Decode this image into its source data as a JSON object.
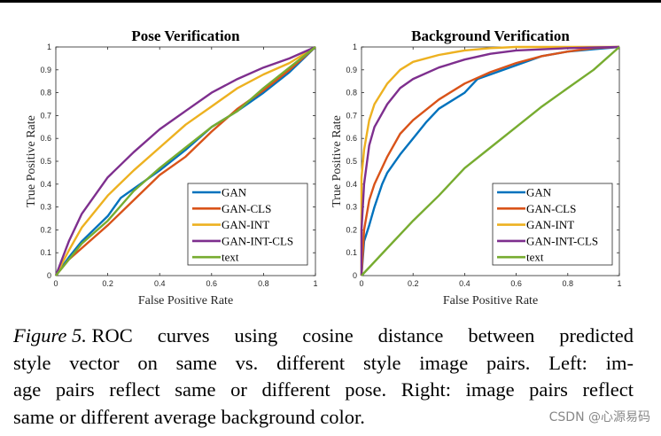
{
  "chart_data": [
    {
      "type": "line",
      "title": "Pose Verification",
      "xlabel": "False Positive Rate",
      "ylabel": "True Positive Rate",
      "xlim": [
        0,
        1
      ],
      "ylim": [
        0,
        1
      ],
      "xticks": [
        "0",
        "0.2",
        "0.4",
        "0.6",
        "0.8",
        "1"
      ],
      "yticks": [
        "0",
        "0.1",
        "0.2",
        "0.3",
        "0.4",
        "0.5",
        "0.6",
        "0.7",
        "0.8",
        "0.9",
        "1"
      ],
      "legend_position": "bottom-right",
      "grid": false,
      "series": [
        {
          "name": "GAN",
          "color": "#0072BD",
          "points": [
            [
              0,
              0
            ],
            [
              0.05,
              0.08
            ],
            [
              0.1,
              0.15
            ],
            [
              0.2,
              0.26
            ],
            [
              0.25,
              0.34
            ],
            [
              0.3,
              0.38
            ],
            [
              0.4,
              0.46
            ],
            [
              0.5,
              0.55
            ],
            [
              0.6,
              0.65
            ],
            [
              0.7,
              0.72
            ],
            [
              0.8,
              0.8
            ],
            [
              0.9,
              0.89
            ],
            [
              1,
              1
            ]
          ]
        },
        {
          "name": "GAN-CLS",
          "color": "#D95319",
          "points": [
            [
              0,
              0
            ],
            [
              0.05,
              0.07
            ],
            [
              0.1,
              0.12
            ],
            [
              0.2,
              0.22
            ],
            [
              0.3,
              0.33
            ],
            [
              0.4,
              0.44
            ],
            [
              0.5,
              0.52
            ],
            [
              0.6,
              0.63
            ],
            [
              0.7,
              0.73
            ],
            [
              0.8,
              0.81
            ],
            [
              0.9,
              0.9
            ],
            [
              1,
              1
            ]
          ]
        },
        {
          "name": "GAN-INT",
          "color": "#EDB120",
          "points": [
            [
              0,
              0
            ],
            [
              0.05,
              0.11
            ],
            [
              0.1,
              0.21
            ],
            [
              0.2,
              0.35
            ],
            [
              0.3,
              0.46
            ],
            [
              0.4,
              0.56
            ],
            [
              0.5,
              0.66
            ],
            [
              0.6,
              0.74
            ],
            [
              0.7,
              0.82
            ],
            [
              0.8,
              0.88
            ],
            [
              0.9,
              0.93
            ],
            [
              1,
              1
            ]
          ]
        },
        {
          "name": "GAN-INT-CLS",
          "color": "#7E2F8E",
          "points": [
            [
              0,
              0
            ],
            [
              0.05,
              0.15
            ],
            [
              0.1,
              0.27
            ],
            [
              0.2,
              0.43
            ],
            [
              0.3,
              0.54
            ],
            [
              0.4,
              0.64
            ],
            [
              0.5,
              0.72
            ],
            [
              0.6,
              0.8
            ],
            [
              0.7,
              0.86
            ],
            [
              0.8,
              0.91
            ],
            [
              0.9,
              0.95
            ],
            [
              1,
              1
            ]
          ]
        },
        {
          "name": "text",
          "color": "#77AC30",
          "points": [
            [
              0,
              0
            ],
            [
              0.1,
              0.14
            ],
            [
              0.2,
              0.24
            ],
            [
              0.3,
              0.37
            ],
            [
              0.4,
              0.47
            ],
            [
              0.5,
              0.56
            ],
            [
              0.6,
              0.65
            ],
            [
              0.7,
              0.72
            ],
            [
              0.8,
              0.82
            ],
            [
              0.9,
              0.91
            ],
            [
              1,
              1
            ]
          ]
        }
      ]
    },
    {
      "type": "line",
      "title": "Background Verification",
      "xlabel": "False Positive Rate",
      "ylabel": "True Positive Rate",
      "xlim": [
        0,
        1
      ],
      "ylim": [
        0,
        1
      ],
      "xticks": [
        "0",
        "0.2",
        "0.4",
        "0.6",
        "0.8",
        "1"
      ],
      "yticks": [
        "0",
        "0.1",
        "0.2",
        "0.3",
        "0.4",
        "0.5",
        "0.6",
        "0.7",
        "0.8",
        "0.9",
        "1"
      ],
      "legend_position": "bottom-right",
      "grid": false,
      "series": [
        {
          "name": "GAN",
          "color": "#0072BD",
          "points": [
            [
              0,
              0
            ],
            [
              0.01,
              0.15
            ],
            [
              0.03,
              0.22
            ],
            [
              0.05,
              0.3
            ],
            [
              0.08,
              0.4
            ],
            [
              0.1,
              0.45
            ],
            [
              0.15,
              0.53
            ],
            [
              0.2,
              0.6
            ],
            [
              0.25,
              0.67
            ],
            [
              0.3,
              0.73
            ],
            [
              0.4,
              0.8
            ],
            [
              0.45,
              0.86
            ],
            [
              0.5,
              0.88
            ],
            [
              0.6,
              0.92
            ],
            [
              0.7,
              0.96
            ],
            [
              0.8,
              0.98
            ],
            [
              0.9,
              0.99
            ],
            [
              1,
              1
            ]
          ]
        },
        {
          "name": "GAN-CLS",
          "color": "#D95319",
          "points": [
            [
              0,
              0
            ],
            [
              0.01,
              0.2
            ],
            [
              0.03,
              0.33
            ],
            [
              0.05,
              0.4
            ],
            [
              0.1,
              0.52
            ],
            [
              0.15,
              0.62
            ],
            [
              0.2,
              0.68
            ],
            [
              0.3,
              0.77
            ],
            [
              0.4,
              0.84
            ],
            [
              0.5,
              0.89
            ],
            [
              0.6,
              0.93
            ],
            [
              0.7,
              0.96
            ],
            [
              0.8,
              0.98
            ],
            [
              0.9,
              0.995
            ],
            [
              1,
              1
            ]
          ]
        },
        {
          "name": "GAN-INT",
          "color": "#EDB120",
          "points": [
            [
              0,
              0
            ],
            [
              0,
              0.43
            ],
            [
              0.01,
              0.55
            ],
            [
              0.03,
              0.68
            ],
            [
              0.05,
              0.75
            ],
            [
              0.1,
              0.84
            ],
            [
              0.15,
              0.9
            ],
            [
              0.2,
              0.935
            ],
            [
              0.3,
              0.965
            ],
            [
              0.4,
              0.985
            ],
            [
              0.5,
              0.995
            ],
            [
              0.6,
              1
            ],
            [
              1,
              1
            ]
          ]
        },
        {
          "name": "GAN-INT-CLS",
          "color": "#7E2F8E",
          "points": [
            [
              0,
              0
            ],
            [
              0,
              0.2
            ],
            [
              0.01,
              0.4
            ],
            [
              0.03,
              0.57
            ],
            [
              0.05,
              0.65
            ],
            [
              0.1,
              0.75
            ],
            [
              0.15,
              0.82
            ],
            [
              0.2,
              0.86
            ],
            [
              0.3,
              0.91
            ],
            [
              0.4,
              0.945
            ],
            [
              0.5,
              0.97
            ],
            [
              0.6,
              0.985
            ],
            [
              0.8,
              0.995
            ],
            [
              1,
              1
            ]
          ]
        },
        {
          "name": "text",
          "color": "#77AC30",
          "points": [
            [
              0,
              0
            ],
            [
              0.05,
              0.06
            ],
            [
              0.1,
              0.12
            ],
            [
              0.2,
              0.24
            ],
            [
              0.3,
              0.35
            ],
            [
              0.4,
              0.47
            ],
            [
              0.5,
              0.56
            ],
            [
              0.6,
              0.65
            ],
            [
              0.7,
              0.74
            ],
            [
              0.8,
              0.82
            ],
            [
              0.9,
              0.9
            ],
            [
              1,
              1
            ]
          ]
        }
      ]
    }
  ],
  "caption": {
    "label": "Figure 5.",
    "lines": [
      "ROC curves using cosine distance between predicted",
      "style vector on same vs.  different style image pairs.  Left: im-",
      "age pairs reflect same or different pose. Right: image pairs reflect",
      "same or different average background color."
    ]
  },
  "watermark": "CSDN @心源易码"
}
